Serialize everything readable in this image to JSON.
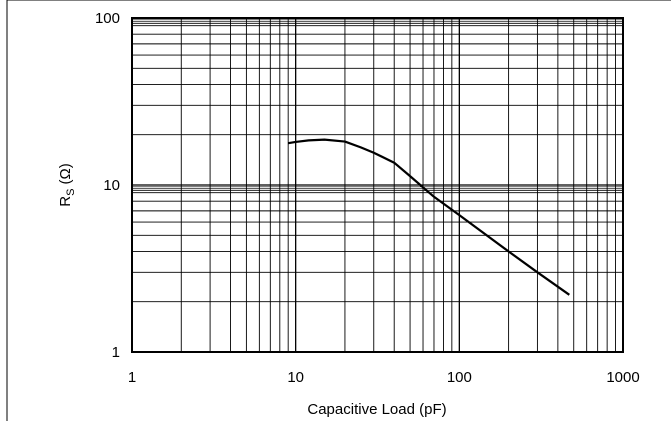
{
  "chart_data": {
    "type": "line",
    "xscale": "log",
    "yscale": "log",
    "xlim": [
      1,
      1000
    ],
    "ylim": [
      1,
      100
    ],
    "grid": true,
    "xlabel": "Capacitive Load (pF)",
    "ylabel_main": "R",
    "ylabel_sub": "S",
    "ylabel_unit": "(Ω)",
    "x_ticks": [
      {
        "value": 1,
        "label": "1"
      },
      {
        "value": 10,
        "label": "10"
      },
      {
        "value": 100,
        "label": "100"
      },
      {
        "value": 1000,
        "label": "1000"
      }
    ],
    "y_ticks": [
      {
        "value": 1,
        "label": "1"
      },
      {
        "value": 10,
        "label": "10"
      },
      {
        "value": 100,
        "label": "100"
      }
    ],
    "series": [
      {
        "x": [
          9,
          10,
          12,
          15,
          20,
          25,
          30,
          40,
          50,
          70,
          100,
          200,
          300,
          470
        ],
        "y": [
          17.8,
          18.1,
          18.5,
          18.7,
          18.2,
          16.8,
          15.6,
          13.6,
          11.3,
          8.5,
          6.6,
          4.0,
          3.0,
          2.2
        ],
        "color": "#000000"
      }
    ]
  }
}
